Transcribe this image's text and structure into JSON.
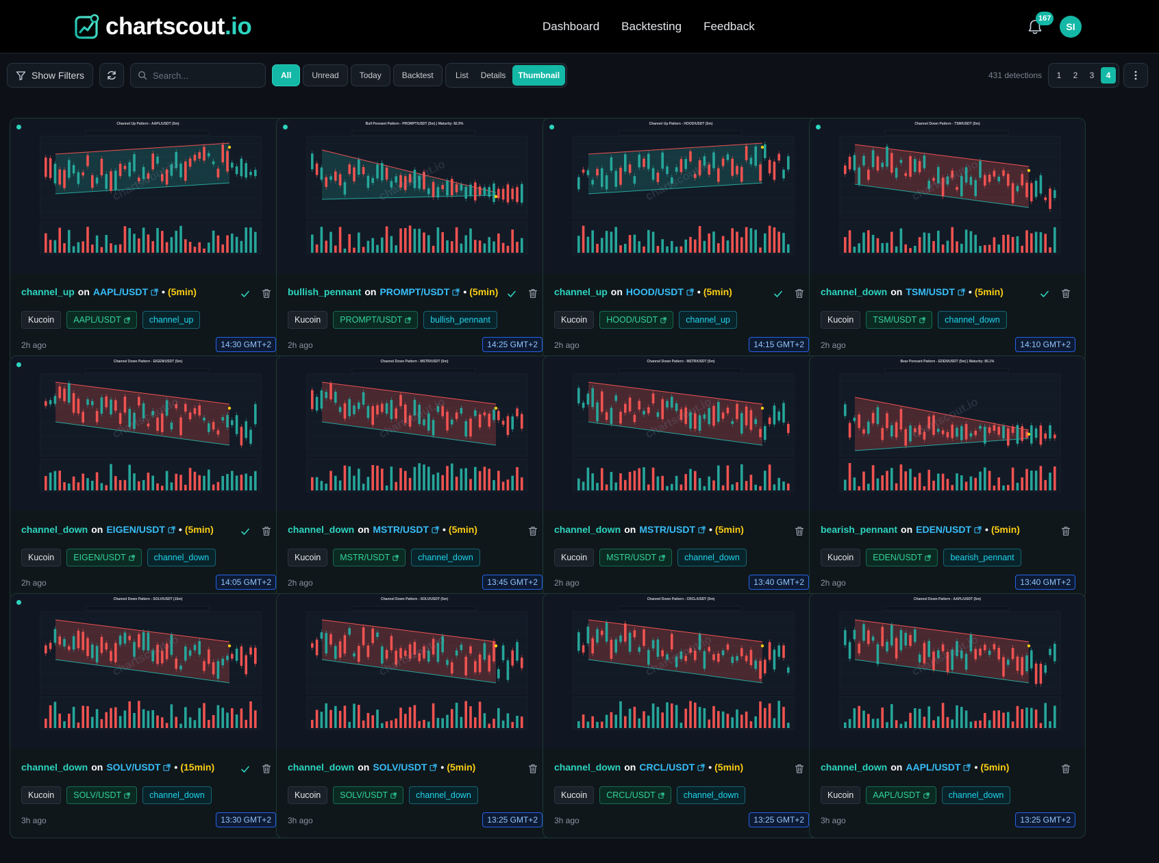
{
  "header": {
    "logo_text": "chartscout",
    "logo_tld": ".io",
    "nav": [
      "Dashboard",
      "Backtesting",
      "Feedback"
    ],
    "notification_count": "167",
    "avatar_initials": "SI"
  },
  "toolbar": {
    "filters_label": "Show Filters",
    "search_placeholder": "Search...",
    "filter_chips": [
      "All",
      "Unread",
      "Today",
      "Backtest"
    ],
    "active_filter": "All",
    "view_modes": [
      "List",
      "Details",
      "Thumbnail"
    ],
    "active_view": "Thumbnail",
    "detections": "431 detections",
    "pages": [
      "1",
      "2",
      "3",
      "4"
    ],
    "active_page": "4"
  },
  "colors": {
    "accent": "#14b8a6",
    "pattern_text": "#2dd4bf",
    "symbol_text": "#38bdf8",
    "timeframe_text": "#facc15",
    "bull_candle": "#26a69a",
    "bear_candle": "#ef5350"
  },
  "cards": [
    {
      "pattern": "channel_up",
      "symbol": "AAPL/USDT",
      "timeframe": "(5min)",
      "exchange": "Kucoin",
      "ago": "2h ago",
      "time": "14:30 GMT+2",
      "unread": true,
      "checked": true,
      "chart_title": "Channel Up Pattern - AAPL/USDT (5m)",
      "chart_kind": "channel_up"
    },
    {
      "pattern": "bullish_pennant",
      "symbol": "PROMPT/USDT",
      "timeframe": "(5min)",
      "exchange": "Kucoin",
      "ago": "2h ago",
      "time": "14:25 GMT+2",
      "unread": true,
      "checked": true,
      "chart_title": "Bull Pennant Pattern - PROMPT/USDT (5m) | Maturity: 82.9%",
      "chart_kind": "bull_pennant"
    },
    {
      "pattern": "channel_up",
      "symbol": "HOOD/USDT",
      "timeframe": "(5min)",
      "exchange": "Kucoin",
      "ago": "2h ago",
      "time": "14:15 GMT+2",
      "unread": true,
      "checked": true,
      "chart_title": "Channel Up Pattern - HOOD/USDT (5m)",
      "chart_kind": "channel_up"
    },
    {
      "pattern": "channel_down",
      "symbol": "TSM/USDT",
      "timeframe": "(5min)",
      "exchange": "Kucoin",
      "ago": "2h ago",
      "time": "14:10 GMT+2",
      "unread": true,
      "checked": true,
      "chart_title": "Channel Down Pattern - TSM/USDT (5m)",
      "chart_kind": "channel_down"
    },
    {
      "pattern": "channel_down",
      "symbol": "EIGEN/USDT",
      "timeframe": "(5min)",
      "exchange": "Kucoin",
      "ago": "2h ago",
      "time": "14:05 GMT+2",
      "unread": true,
      "checked": true,
      "chart_title": "Channel Down Pattern - EIGEN/USDT (5m)",
      "chart_kind": "channel_down"
    },
    {
      "pattern": "channel_down",
      "symbol": "MSTR/USDT",
      "timeframe": "(5min)",
      "exchange": "Kucoin",
      "ago": "2h ago",
      "time": "13:45 GMT+2",
      "unread": false,
      "checked": false,
      "chart_title": "Channel Down Pattern - MSTR/USDT (5m)",
      "chart_kind": "channel_down"
    },
    {
      "pattern": "channel_down",
      "symbol": "MSTR/USDT",
      "timeframe": "(5min)",
      "exchange": "Kucoin",
      "ago": "2h ago",
      "time": "13:40 GMT+2",
      "unread": false,
      "checked": false,
      "chart_title": "Channel Down Pattern - MSTR/USDT (5m)",
      "chart_kind": "channel_down"
    },
    {
      "pattern": "bearish_pennant",
      "symbol": "EDEN/USDT",
      "timeframe": "(5min)",
      "exchange": "Kucoin",
      "ago": "2h ago",
      "time": "13:40 GMT+2",
      "unread": false,
      "checked": false,
      "chart_title": "Bear Pennant Pattern - EDEN/USDT (5m) | Maturity: 85.1%",
      "chart_kind": "bear_pennant"
    },
    {
      "pattern": "channel_down",
      "symbol": "SOLV/USDT",
      "timeframe": "(15min)",
      "exchange": "Kucoin",
      "ago": "3h ago",
      "time": "13:30 GMT+2",
      "unread": true,
      "checked": true,
      "chart_title": "Channel Down Pattern - SOLV/USDT (15m)",
      "chart_kind": "channel_down"
    },
    {
      "pattern": "channel_down",
      "symbol": "SOLV/USDT",
      "timeframe": "(5min)",
      "exchange": "Kucoin",
      "ago": "3h ago",
      "time": "13:25 GMT+2",
      "unread": false,
      "checked": false,
      "chart_title": "Channel Down Pattern - SOLV/USDT (5m)",
      "chart_kind": "channel_down"
    },
    {
      "pattern": "channel_down",
      "symbol": "CRCL/USDT",
      "timeframe": "(5min)",
      "exchange": "Kucoin",
      "ago": "3h ago",
      "time": "13:25 GMT+2",
      "unread": false,
      "checked": false,
      "chart_title": "Channel Down Pattern - CRCL/USDT (5m)",
      "chart_kind": "channel_down"
    },
    {
      "pattern": "channel_down",
      "symbol": "AAPL/USDT",
      "timeframe": "(5min)",
      "exchange": "Kucoin",
      "ago": "3h ago",
      "time": "13:25 GMT+2",
      "unread": false,
      "checked": false,
      "chart_title": "Channel Down Pattern - AAPL/USDT (5m)",
      "chart_kind": "channel_down"
    }
  ]
}
